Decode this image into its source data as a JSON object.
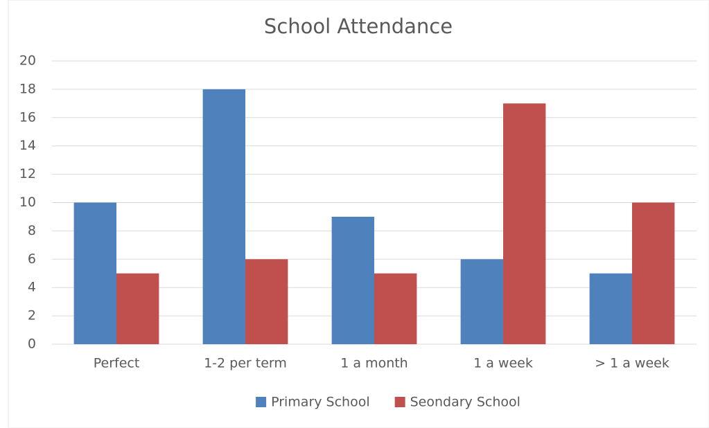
{
  "chart_data": {
    "type": "bar",
    "title": "School Attendance",
    "categories": [
      "Perfect",
      "1-2 per term",
      "1 a month",
      "1 a week",
      "> 1 a week"
    ],
    "series": [
      {
        "name": "Primary School",
        "color": "#4f81bd",
        "values": [
          10,
          18,
          9,
          6,
          5
        ]
      },
      {
        "name": "Seondary School",
        "color": "#c0504d",
        "values": [
          5,
          6,
          5,
          17,
          10
        ]
      }
    ],
    "ylim": [
      0,
      20
    ],
    "yticks": [
      0,
      2,
      4,
      6,
      8,
      10,
      12,
      14,
      16,
      18,
      20
    ],
    "grid": true,
    "legend": "bottom"
  }
}
